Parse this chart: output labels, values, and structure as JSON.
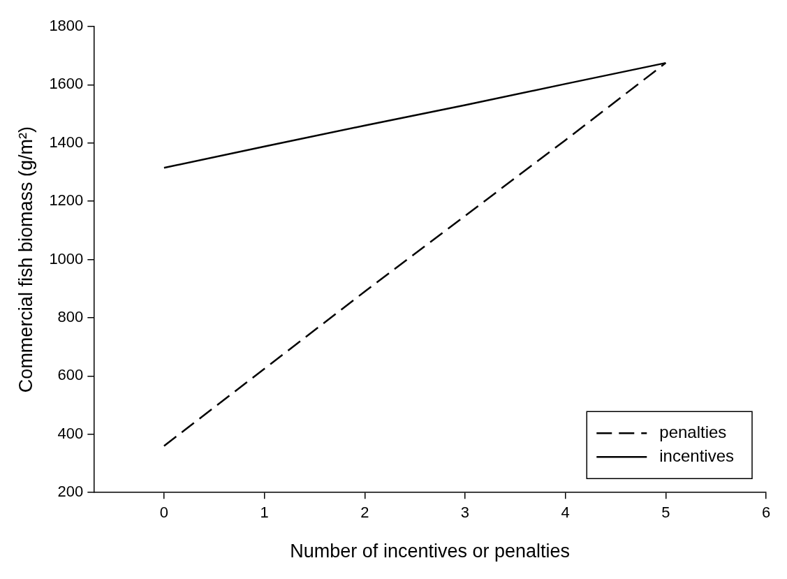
{
  "chart_data": {
    "type": "line",
    "xlabel": "Number of incentives or penalties",
    "ylabel": "Commercial fish biomass (g/m²)",
    "xlim": [
      -0.7,
      6
    ],
    "xticks": [
      0,
      1,
      2,
      3,
      4,
      5,
      6
    ],
    "ylim": [
      200,
      1800
    ],
    "yticks": [
      200,
      400,
      600,
      800,
      1000,
      1200,
      1400,
      1600,
      1800
    ],
    "grid": false,
    "legend": "bottom right",
    "marker": "none",
    "x": [
      0,
      1,
      2,
      3,
      4,
      5
    ],
    "series": [
      {
        "name": "penalties",
        "color": "#000000",
        "line_style": "dashed",
        "values": [
          360,
          625,
          890,
          1150,
          1410,
          1675
        ]
      },
      {
        "name": "incentives",
        "color": "#000000",
        "line_style": "solid",
        "values": [
          1315,
          1388,
          1460,
          1530,
          1603,
          1675
        ]
      }
    ]
  }
}
